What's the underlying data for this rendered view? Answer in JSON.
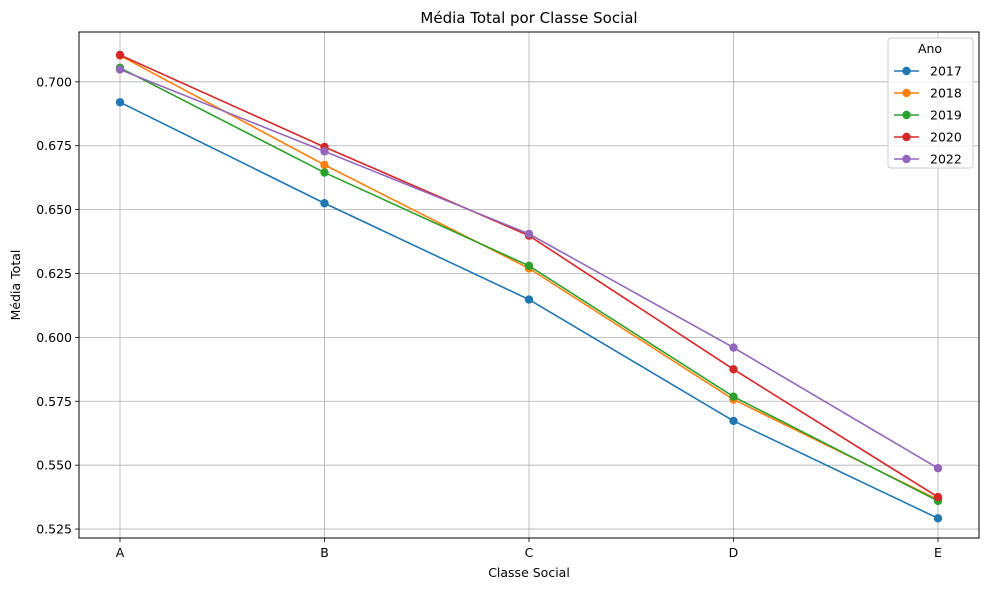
{
  "chart_data": {
    "type": "line",
    "title": "Média Total por Classe Social",
    "xlabel": "Classe Social",
    "ylabel": "Média Total",
    "categories": [
      "A",
      "B",
      "C",
      "D",
      "E"
    ],
    "ylim": [
      0.5215,
      0.7195
    ],
    "yticks": [
      "0.525",
      "0.550",
      "0.575",
      "0.600",
      "0.625",
      "0.650",
      "0.675",
      "0.700"
    ],
    "grid": true,
    "legend": {
      "title": "Ano",
      "placement": "top-right"
    },
    "series": [
      {
        "name": "2017",
        "color": "#1f77b4",
        "values": [
          0.692,
          0.6525,
          0.6148,
          0.5673,
          0.5292
        ]
      },
      {
        "name": "2018",
        "color": "#ff7f0e",
        "values": [
          0.7103,
          0.6675,
          0.627,
          0.5757,
          0.5365
        ]
      },
      {
        "name": "2019",
        "color": "#2ca02c",
        "values": [
          0.7055,
          0.6645,
          0.628,
          0.5768,
          0.536
        ]
      },
      {
        "name": "2020",
        "color": "#d62728",
        "values": [
          0.7105,
          0.6745,
          0.6398,
          0.5875,
          0.5375
        ]
      },
      {
        "name": "2022",
        "color": "#9467bd",
        "values": [
          0.7048,
          0.6728,
          0.6405,
          0.596,
          0.5488
        ]
      }
    ]
  }
}
